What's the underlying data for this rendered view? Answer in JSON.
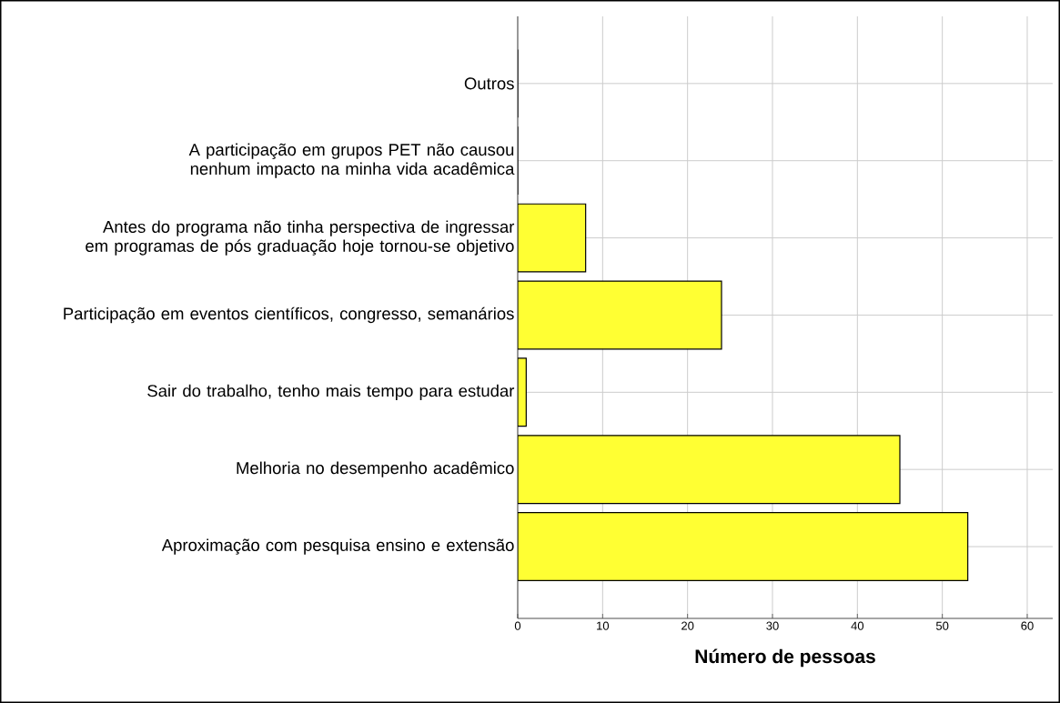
{
  "chart_data": {
    "type": "bar",
    "orientation": "horizontal",
    "categories": [
      "Outros",
      "A participação em grupos PET não causou nenhum impacto na minha vida acadêmica",
      "Antes do programa não tinha perspectiva de ingressar em programas de pós graduação hoje tornou-se objetivo",
      "Participação em eventos científicos, congresso, semanários",
      "Sair do trabalho, tenho mais tempo para estudar",
      "Melhoria no desempenho acadêmico",
      "Aproximação com pesquisa ensino e extensão"
    ],
    "values": [
      0,
      0,
      8,
      24,
      1,
      45,
      53
    ],
    "color": "#ffff33",
    "xlabel": "Número de pessoas",
    "xlim": [
      0,
      63
    ],
    "xticks": [
      0,
      10,
      20,
      30,
      40,
      50,
      60
    ],
    "grid": true
  }
}
